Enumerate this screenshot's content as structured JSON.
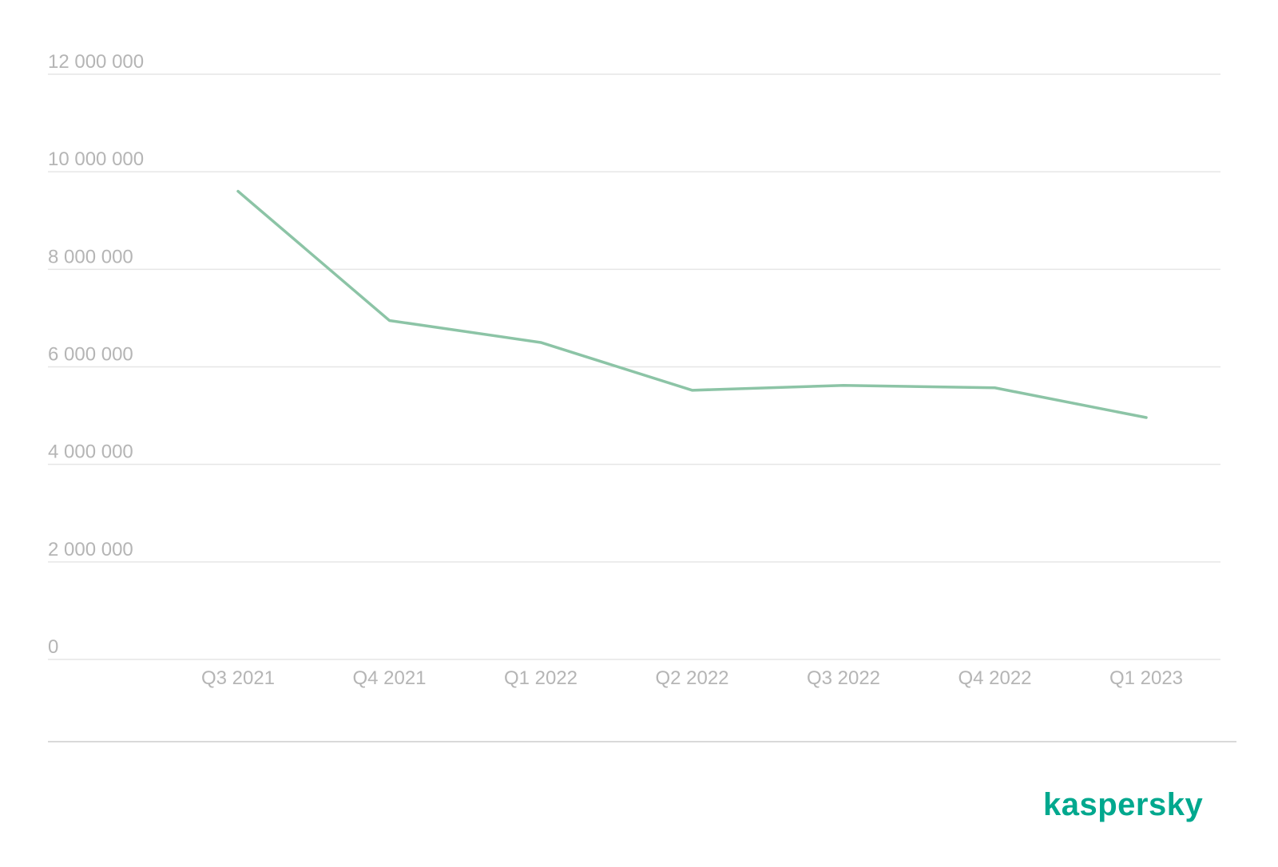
{
  "chart_data": {
    "type": "line",
    "categories": [
      "Q3 2021",
      "Q4 2021",
      "Q1 2022",
      "Q2 2022",
      "Q3 2022",
      "Q4 2022",
      "Q1 2023"
    ],
    "series": [
      {
        "values": [
          9600000,
          6950000,
          6500000,
          5520000,
          5620000,
          5570000,
          4960000
        ]
      }
    ],
    "yticks": [
      "0",
      "2 000 000",
      "4 000 000",
      "6 000 000",
      "8 000 000",
      "10 000 000",
      "12 000 000"
    ],
    "ytick_values": [
      0,
      2000000,
      4000000,
      6000000,
      8000000,
      10000000,
      12000000
    ],
    "ylim": [
      0,
      12000000
    ],
    "grid": true,
    "line_color": "#8cc4a6"
  },
  "brand": {
    "logo_text": "kaspersky",
    "color": "#00a88e"
  },
  "colors": {
    "tick_text": "#b5b5b5",
    "grid": "#e6e6e6",
    "divider": "#d9d9d9"
  }
}
